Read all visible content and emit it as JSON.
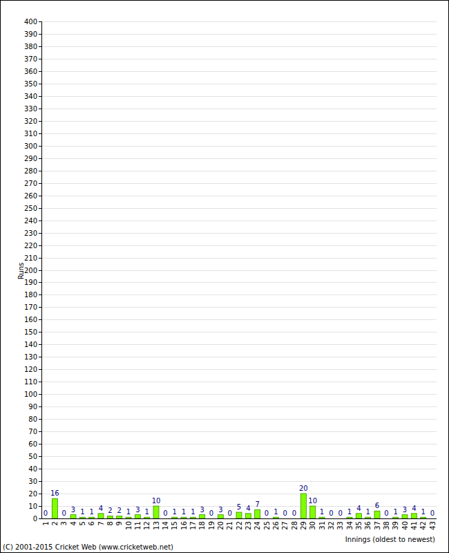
{
  "chart_data": {
    "type": "bar",
    "x_label": "Innings (oldest to newest)",
    "y_label": "Runs",
    "annotations": [
      "(C) 2001-2015 Cricket Web (www.cricketweb.net)"
    ],
    "categories": [
      "1",
      "2",
      "3",
      "4",
      "5",
      "6",
      "7",
      "8",
      "9",
      "10",
      "11",
      "12",
      "13",
      "14",
      "15",
      "16",
      "17",
      "18",
      "19",
      "20",
      "21",
      "22",
      "23",
      "24",
      "25",
      "26",
      "27",
      "28",
      "29",
      "30",
      "31",
      "32",
      "33",
      "34",
      "35",
      "36",
      "37",
      "38",
      "39",
      "40",
      "41",
      "42",
      "43"
    ],
    "values": [
      0,
      16,
      0,
      3,
      1,
      1,
      4,
      2,
      2,
      1,
      3,
      1,
      10,
      0,
      1,
      1,
      1,
      3,
      0,
      3,
      0,
      5,
      4,
      7,
      0,
      1,
      0,
      0,
      20,
      10,
      1,
      0,
      0,
      1,
      4,
      1,
      6,
      0,
      1,
      3,
      4,
      1,
      0
    ],
    "color": "#80ff00",
    "ylim": [
      0,
      400
    ],
    "yticks": [
      0,
      10,
      20,
      30,
      40,
      50,
      60,
      70,
      80,
      90,
      100,
      110,
      120,
      130,
      140,
      150,
      160,
      170,
      180,
      190,
      200,
      210,
      220,
      230,
      240,
      250,
      260,
      270,
      280,
      290,
      300,
      310,
      320,
      330,
      340,
      350,
      360,
      370,
      380,
      390,
      400
    ],
    "grid": true,
    "data_labels": true
  }
}
